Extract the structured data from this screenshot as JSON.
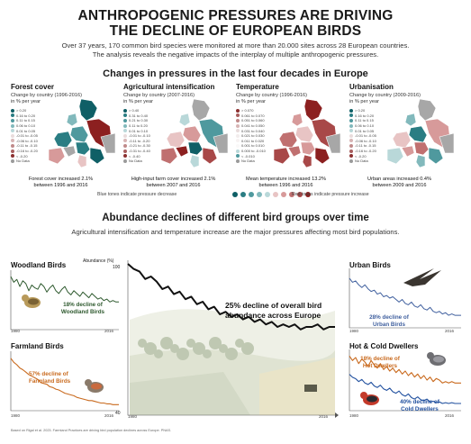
{
  "header": {
    "title_line1": "ANTHROPOGENIC PRESSURES ARE DRIVING",
    "title_line2": "THE DECLINE OF EUROPEAN BIRDS",
    "subtitle_line1": "Over 37 years, 170 common bird species were monitored at more than 20.000 sites across 28 European countries.",
    "subtitle_line2": "The analysis reveals the negative impacts of the interplay of multiple anthropogenic pressures."
  },
  "pressures": {
    "section_title": "Changes in pressures in the last four decades in Europe",
    "panels": [
      {
        "title": "Forest cover",
        "subtitle_line1": "Change by country (1996-2016)",
        "subtitle_line2": "in % per year",
        "legend": [
          {
            "label": "> 0.20",
            "color": "#0f5f66"
          },
          {
            "label": "0.16 to 0.20",
            "color": "#2a7d83"
          },
          {
            "label": "0.11 to 0.15",
            "color": "#4f999e"
          },
          {
            "label": "0.06 to 0.10",
            "color": "#82b9bc"
          },
          {
            "label": "0.01 to 0.05",
            "color": "#b9d8d9"
          },
          {
            "label": "-0.01 to -0.05",
            "color": "#e8dcdc"
          },
          {
            "label": "-0.06 to -0.10",
            "color": "#d7b5b5"
          },
          {
            "label": "-0.11 to -0.15",
            "color": "#c08a8a"
          },
          {
            "label": "-0.16 to -0.20",
            "color": "#a85e5e"
          },
          {
            "label": "< -0.20",
            "color": "#8c3030"
          },
          {
            "label": "No Data",
            "color": "#9a9a9a"
          }
        ],
        "caption_line1": "Forest cover increased 2.1%",
        "caption_line2": "between 1996 and 2016"
      },
      {
        "title": "Agricultural intensification",
        "subtitle_line1": "Change by country (2007-2016)",
        "subtitle_line2": "in % per year",
        "legend": [
          {
            "label": "> 0.40",
            "color": "#0f5f66"
          },
          {
            "label": "0.31 to 0.40",
            "color": "#2a7d83"
          },
          {
            "label": "0.21 to 0.30",
            "color": "#4f999e"
          },
          {
            "label": "0.11 to 0.20",
            "color": "#82b9bc"
          },
          {
            "label": "0.01 to 0.10",
            "color": "#b9d8d9"
          },
          {
            "label": "-0.01 to -0.10",
            "color": "#e8dcdc"
          },
          {
            "label": "-0.11 to -0.20",
            "color": "#d7b5b5"
          },
          {
            "label": "-0.21 to -0.30",
            "color": "#c08a8a"
          },
          {
            "label": "-0.31 to -0.40",
            "color": "#a85e5e"
          },
          {
            "label": "< -0.40",
            "color": "#8c3030"
          },
          {
            "label": "No Data",
            "color": "#9a9a9a"
          }
        ],
        "caption_line1": "High-input farm cover increased 2.1%",
        "caption_line2": "between 2007 and 2016"
      },
      {
        "title": "Temperature",
        "subtitle_line1": "Change by country (1996-2016)",
        "subtitle_line2": "in % per year",
        "legend": [
          {
            "label": "> 0.070",
            "color": "#8c3030"
          },
          {
            "label": "0.061 to 0.070",
            "color": "#a85e5e"
          },
          {
            "label": "0.051 to 0.060",
            "color": "#c08a8a"
          },
          {
            "label": "0.041 to 0.050",
            "color": "#d7b5b5"
          },
          {
            "label": "0.031 to 0.040",
            "color": "#e8dcdc"
          },
          {
            "label": "0.021 to 0.030",
            "color": "#f2ecec"
          },
          {
            "label": "0.011 to 0.020",
            "color": "#f7f2f2"
          },
          {
            "label": "0.001 to 0.010",
            "color": "#faf8f8"
          },
          {
            "label": "0.000 to -0.010",
            "color": "#b9d8d9"
          },
          {
            "label": "< -0.010",
            "color": "#4f999e"
          },
          {
            "label": "No Data",
            "color": "#9a9a9a"
          }
        ],
        "caption_line1": "Mean temperature increased 13.2%",
        "caption_line2": "between 1996 and 2016"
      },
      {
        "title": "Urbanisation",
        "subtitle_line1": "Change by country (2009-2016)",
        "subtitle_line2": "in % per year",
        "legend": [
          {
            "label": "> 0.20",
            "color": "#0f5f66"
          },
          {
            "label": "0.16 to 0.20",
            "color": "#2a7d83"
          },
          {
            "label": "0.11 to 0.15",
            "color": "#4f999e"
          },
          {
            "label": "0.06 to 0.10",
            "color": "#82b9bc"
          },
          {
            "label": "0.01 to 0.05",
            "color": "#b9d8d9"
          },
          {
            "label": "-0.01 to -0.05",
            "color": "#e8dcdc"
          },
          {
            "label": "-0.06 to -0.10",
            "color": "#d7b5b5"
          },
          {
            "label": "-0.11 to -0.15",
            "color": "#c08a8a"
          },
          {
            "label": "-0.16 to -0.20",
            "color": "#a85e5e"
          },
          {
            "label": "< -0.20",
            "color": "#8c3030"
          },
          {
            "label": "No Data",
            "color": "#9a9a9a"
          }
        ],
        "caption_line1": "Urban areas increased 0.4%",
        "caption_line2": "between 2009 and 2016"
      }
    ],
    "scale_blue_label": "Blue tones indicate pressure decrease",
    "scale_red_label": "Red tones indicate pressure increase",
    "scale_colors": [
      "#0f5f66",
      "#2a7d83",
      "#4f999e",
      "#82b9bc",
      "#b9d8d9",
      "#e8c4c4",
      "#d79a9a",
      "#c07070",
      "#a84848",
      "#8c2020"
    ]
  },
  "abundance": {
    "section_title": "Abundance declines of different bird groups over time",
    "subtitle": "Agricultural intensification and temperature increase are the major pressures affecting most bird populations.",
    "footnote": "Based on Rigal et al. 2023. Farmland Practices are driving bird population declines across Europe. PNAS.",
    "colors": {
      "woodland": "#2f5a2f",
      "farmland": "#c96a1e",
      "urban": "#3f5f9e",
      "hot": "#c96a1e",
      "cold": "#1f4f9e",
      "overall": "#111111"
    }
  },
  "chart_data": [
    {
      "type": "line",
      "title": "Abundance (%)",
      "ylim": [
        40,
        100
      ],
      "x_start": "1980",
      "x_end": "2016",
      "ytick_top": "100",
      "ytick_bottom": "40",
      "annotation_line1": "25% decline of overall bird",
      "annotation_line2": "abundance across Europe",
      "series": [
        {
          "values": [
            100,
            98,
            97,
            94,
            95,
            93,
            90,
            91,
            88,
            89,
            86,
            87,
            84,
            85,
            82,
            83,
            80,
            81,
            79,
            80,
            78,
            79,
            77,
            78,
            76,
            77,
            75,
            76,
            75,
            76,
            74,
            75,
            75,
            76,
            74,
            75,
            75
          ]
        }
      ]
    },
    {
      "type": "line",
      "title": "Woodland Birds",
      "x_start": "1980",
      "x_end": "2016",
      "annotation_line1": "18% decline of",
      "annotation_line2": "Woodland Birds",
      "series": [
        {
          "values": [
            100,
            96,
            98,
            93,
            97,
            95,
            90,
            94,
            92,
            91,
            95,
            93,
            89,
            92,
            94,
            90,
            88,
            91,
            93,
            89,
            87,
            90,
            88,
            86,
            89,
            87,
            85,
            88,
            86,
            84,
            85,
            83,
            84,
            82,
            83,
            82,
            82
          ]
        }
      ]
    },
    {
      "type": "line",
      "title": "Farmland Birds",
      "x_start": "1980",
      "x_end": "2016",
      "annotation_line1": "57% decline of",
      "annotation_line2": "Farmland Birds",
      "series": [
        {
          "values": [
            100,
            95,
            92,
            88,
            86,
            83,
            80,
            78,
            76,
            74,
            70,
            69,
            68,
            65,
            64,
            62,
            61,
            59,
            57,
            56,
            55,
            54,
            52,
            51,
            50,
            49,
            48,
            48,
            47,
            46,
            45,
            45,
            44,
            44,
            43,
            43,
            43
          ]
        }
      ]
    },
    {
      "type": "line",
      "title": "Urban Birds",
      "x_start": "1980",
      "x_end": "2016",
      "annotation_line1": "28% decline of",
      "annotation_line2": "Urban Birds",
      "series": [
        {
          "values": [
            100,
            97,
            98,
            95,
            93,
            95,
            92,
            90,
            91,
            88,
            89,
            86,
            87,
            85,
            86,
            84,
            82,
            84,
            81,
            80,
            82,
            79,
            78,
            80,
            77,
            76,
            78,
            75,
            74,
            75,
            73,
            74,
            72,
            73,
            72,
            72,
            72
          ]
        }
      ]
    },
    {
      "type": "line",
      "title": "Hot & Cold Dwellers",
      "x_start": "1980",
      "x_end": "2016",
      "annotations": [
        {
          "line1": "18% decline of",
          "line2": "Hot Dwellers"
        },
        {
          "line1": "40% decline of",
          "line2": "Cold Dwellers"
        }
      ],
      "series": [
        {
          "name": "Hot Dwellers",
          "values": [
            100,
            97,
            99,
            95,
            98,
            96,
            93,
            97,
            94,
            92,
            95,
            91,
            93,
            90,
            92,
            89,
            91,
            88,
            90,
            87,
            89,
            86,
            88,
            85,
            87,
            84,
            86,
            83,
            85,
            84,
            82,
            83,
            82,
            83,
            82,
            82,
            82
          ]
        },
        {
          "name": "Cold Dwellers",
          "values": [
            100,
            96,
            94,
            90,
            93,
            88,
            86,
            89,
            84,
            82,
            85,
            80,
            78,
            81,
            76,
            74,
            77,
            72,
            70,
            73,
            68,
            66,
            69,
            65,
            64,
            66,
            62,
            63,
            61,
            62,
            60,
            61,
            60,
            61,
            60,
            60,
            60
          ]
        }
      ]
    }
  ]
}
